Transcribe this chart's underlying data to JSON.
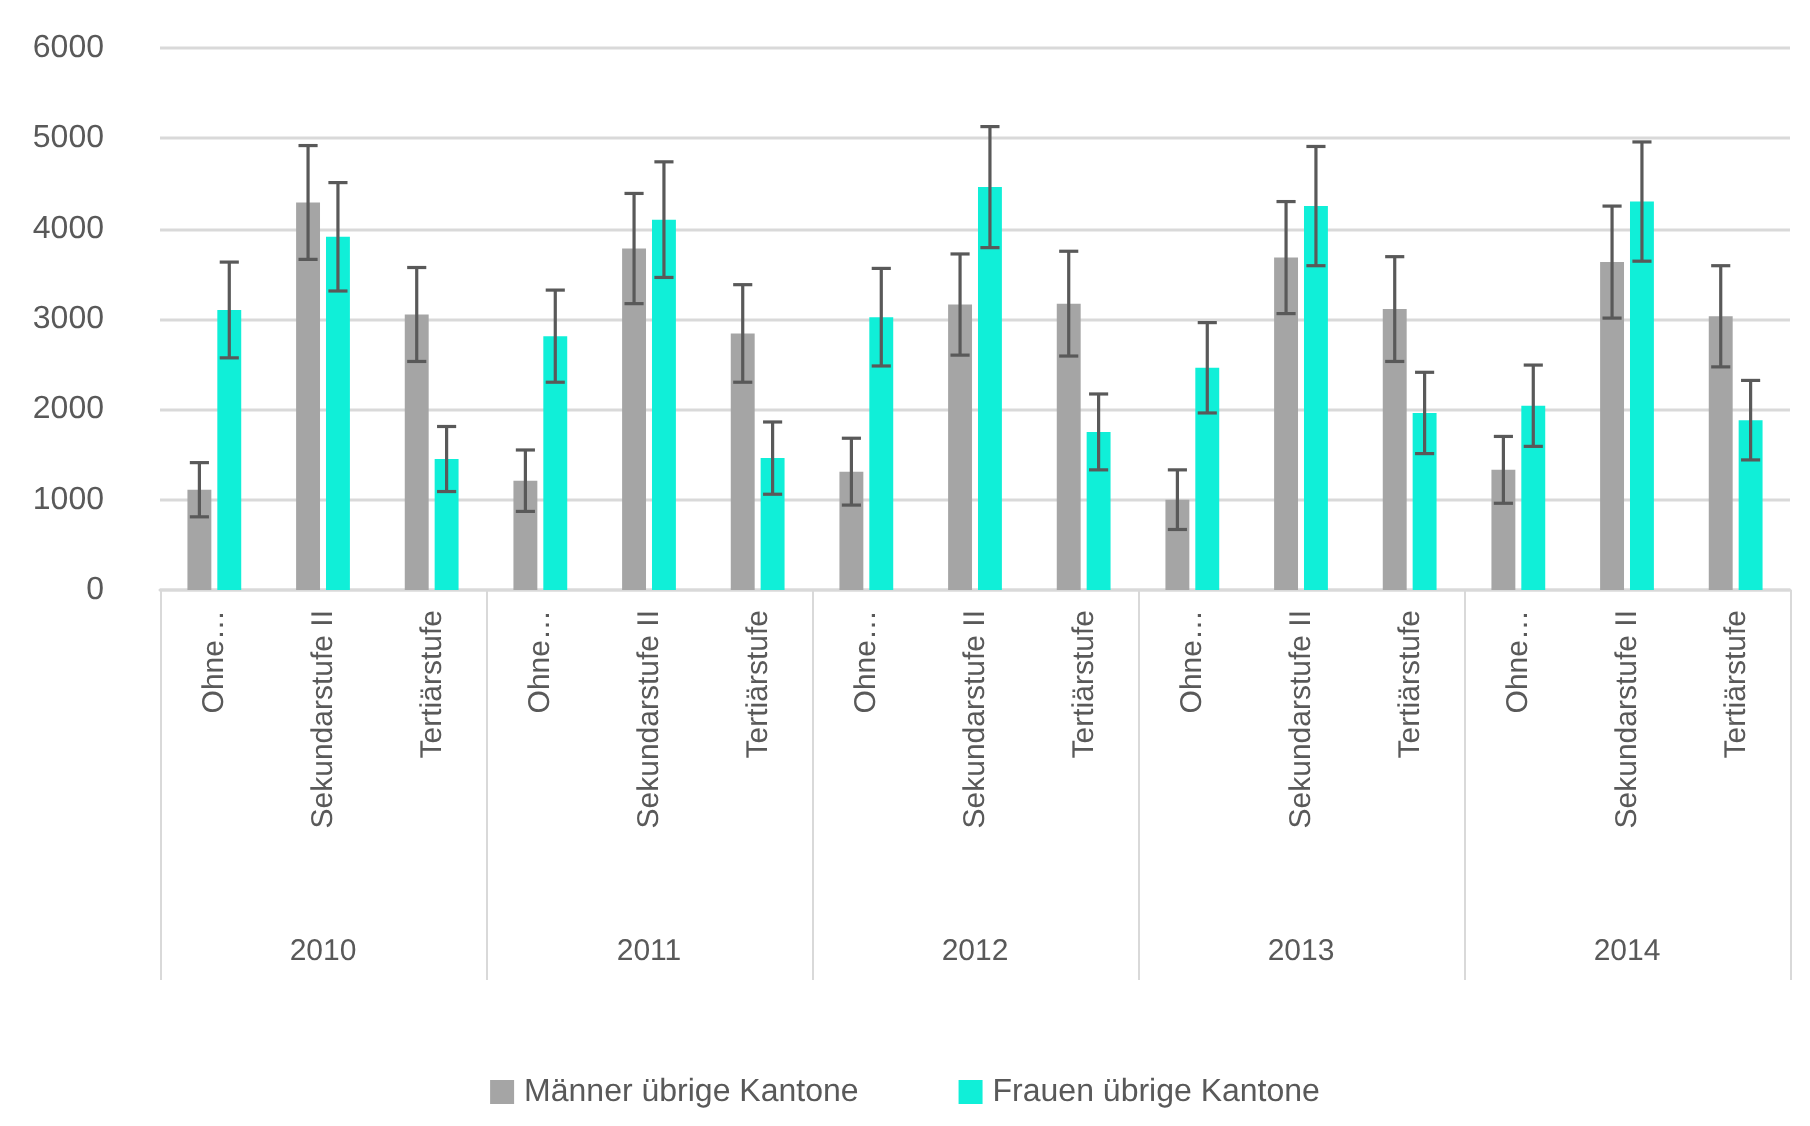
{
  "chart_data": {
    "type": "bar",
    "categories": [
      "Ohne…",
      "Sekundarstufe II",
      "Tertiärstufe",
      "Ohne…",
      "Sekundarstufe II",
      "Tertiärstufe",
      "Ohne…",
      "Sekundarstufe II",
      "Tertiärstufe",
      "Ohne…",
      "Sekundarstufe II",
      "Tertiärstufe",
      "Ohne…",
      "Sekundarstufe II",
      "Tertiärstufe"
    ],
    "annotations": [
      "2010",
      "2011",
      "2012",
      "2013",
      "2014"
    ],
    "series": [
      {
        "name": "Männer übrige Kantone",
        "color": "#a5a5a5",
        "values": [
          1110,
          4290,
          3050,
          1210,
          3780,
          2840,
          1310,
          3160,
          3170,
          1000,
          3680,
          3110,
          1330,
          3630,
          3030
        ],
        "errors": [
          300,
          630,
          520,
          340,
          610,
          540,
          370,
          560,
          580,
          330,
          620,
          580,
          370,
          620,
          560
        ]
      },
      {
        "name": "Frauen übrige Kantone",
        "color": "#10efd8",
        "values": [
          3100,
          3910,
          1450,
          2810,
          4100,
          1460,
          3020,
          4460,
          1750,
          2460,
          4250,
          1960,
          2040,
          4300,
          1880
        ],
        "errors": [
          530,
          600,
          360,
          510,
          640,
          400,
          540,
          670,
          420,
          500,
          660,
          450,
          450,
          660,
          440
        ]
      }
    ],
    "ylim": [
      0,
      6000
    ],
    "yticks": [
      0,
      1000,
      2000,
      3000,
      4000,
      5000,
      6000
    ],
    "grid": "y",
    "legend": "bottom"
  }
}
